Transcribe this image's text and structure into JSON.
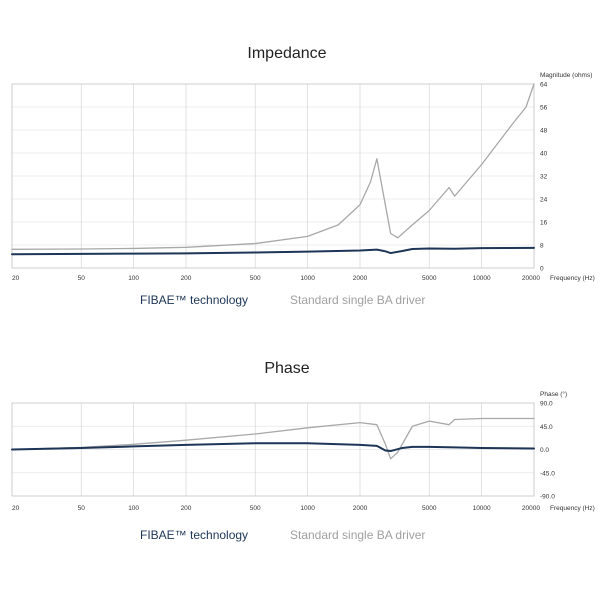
{
  "chart_data": [
    {
      "type": "line",
      "title": "Impedance",
      "xlabel": "Frequency (Hz)",
      "ylabel": "Magnitude (ohms)",
      "xscale": "log",
      "xlim": [
        20,
        20000
      ],
      "ylim": [
        0,
        64
      ],
      "x_ticks": [
        "20",
        "50",
        "100",
        "200",
        "500",
        "1000",
        "2000",
        "5000",
        "10000",
        "20000"
      ],
      "y_ticks": [
        "0",
        "8",
        "16",
        "24",
        "32",
        "40",
        "48",
        "56",
        "64"
      ],
      "grid": true,
      "legend_placement": "bottom",
      "series": [
        {
          "name": "FIBAE™ technology",
          "color": "#1d3557",
          "x": [
            20,
            50,
            100,
            200,
            500,
            1000,
            2000,
            2500,
            2800,
            3000,
            3500,
            4000,
            5000,
            7000,
            10000,
            20000
          ],
          "y": [
            4.8,
            4.9,
            5.0,
            5.1,
            5.4,
            5.7,
            6.1,
            6.4,
            5.8,
            5.2,
            5.9,
            6.6,
            6.8,
            6.7,
            6.9,
            7.0
          ]
        },
        {
          "name": "Standard single BA driver",
          "color": "#a8a8a8",
          "x": [
            20,
            50,
            100,
            200,
            500,
            1000,
            1500,
            2000,
            2300,
            2500,
            2700,
            3000,
            3300,
            4000,
            5000,
            6500,
            7000,
            10000,
            15000,
            18000,
            20000
          ],
          "y": [
            6.5,
            6.6,
            6.8,
            7.2,
            8.5,
            11,
            15,
            22,
            30,
            38,
            27,
            12,
            10.5,
            15,
            20,
            28,
            25,
            36,
            50,
            56,
            64
          ]
        }
      ]
    },
    {
      "type": "line",
      "title": "Phase",
      "xlabel": "Frequency (Hz)",
      "ylabel": "Phase (°)",
      "xscale": "log",
      "xlim": [
        20,
        20000
      ],
      "ylim": [
        -90,
        90
      ],
      "x_ticks": [
        "20",
        "50",
        "100",
        "200",
        "500",
        "1000",
        "2000",
        "5000",
        "10000",
        "20000"
      ],
      "y_ticks": [
        "90.0",
        "45.0",
        "0.0",
        "-45.0",
        "-90.0"
      ],
      "grid": true,
      "legend_placement": "bottom",
      "series": [
        {
          "name": "FIBAE™ technology",
          "color": "#1d3557",
          "x": [
            20,
            50,
            100,
            200,
            500,
            1000,
            2000,
            2500,
            2800,
            3000,
            3500,
            4000,
            5000,
            7000,
            10000,
            20000
          ],
          "y": [
            0,
            3,
            6,
            9,
            12,
            12,
            9,
            7,
            -2,
            -3,
            3,
            5,
            5,
            4,
            3,
            2
          ]
        },
        {
          "name": "Standard single BA driver",
          "color": "#a8a8a8",
          "x": [
            20,
            50,
            100,
            200,
            500,
            1000,
            2000,
            2500,
            2800,
            3000,
            3300,
            4000,
            5000,
            6500,
            7000,
            10000,
            20000
          ],
          "y": [
            0,
            4,
            10,
            18,
            30,
            42,
            52,
            48,
            10,
            -18,
            -5,
            45,
            55,
            48,
            58,
            60,
            60
          ]
        }
      ]
    }
  ]
}
